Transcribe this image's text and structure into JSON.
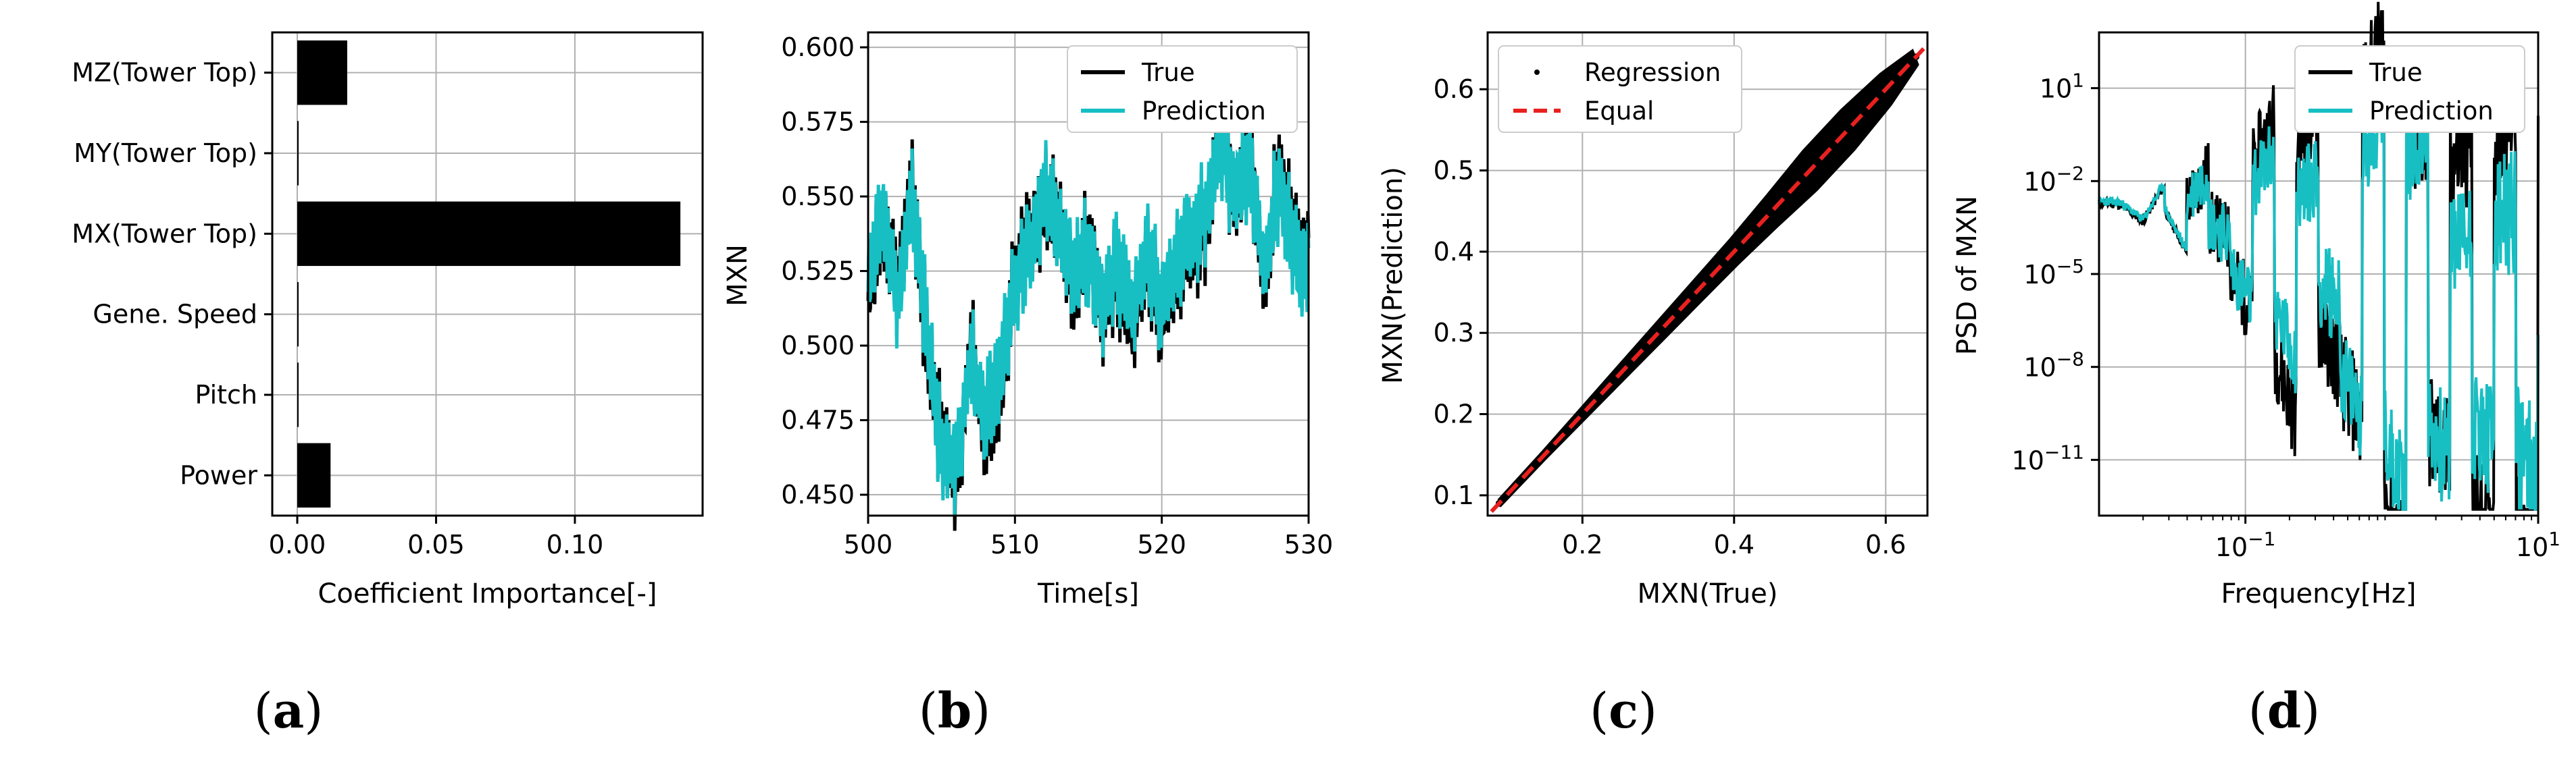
{
  "colors": {
    "true": "#000000",
    "prediction": "#17bfc3",
    "equal": "#e8211f",
    "grid": "#b0b0b0"
  },
  "chart_data": [
    {
      "id": "a",
      "type": "bar",
      "orientation": "horizontal",
      "categories": [
        "MZ(Tower Top)",
        "MY(Tower Top)",
        "MX(Tower Top)",
        "Gene. Speed",
        "Pitch",
        "Power"
      ],
      "values": [
        0.018,
        0.0005,
        0.138,
        0.0004,
        0.0003,
        0.012
      ],
      "xlabel": "Coefficient Importance[-]",
      "ylabel": "",
      "xlim": [
        -0.009,
        0.146
      ],
      "xticks": [
        "0.00",
        "0.05",
        "0.10"
      ],
      "xtick_values": [
        0.0,
        0.05,
        0.1
      ],
      "grid": true,
      "panel_label": {
        "open": "(",
        "letter": "a",
        "close": ")"
      }
    },
    {
      "id": "b",
      "type": "line",
      "xlabel": "Time[s]",
      "ylabel": "MXN",
      "xlim": [
        500,
        530
      ],
      "ylim": [
        0.443,
        0.605
      ],
      "xticks": [
        "500",
        "510",
        "520",
        "530"
      ],
      "xtick_values": [
        500,
        510,
        520,
        530
      ],
      "yticks": [
        "0.450",
        "0.475",
        "0.500",
        "0.525",
        "0.550",
        "0.575",
        "0.600"
      ],
      "ytick_values": [
        0.45,
        0.475,
        0.5,
        0.525,
        0.55,
        0.575,
        0.6
      ],
      "legend": {
        "placement": "top-right",
        "entries": [
          "True",
          "Prediction"
        ]
      },
      "grid": true,
      "series": [
        {
          "name": "True",
          "x": [
            500,
            501,
            502,
            503,
            504,
            505,
            506,
            507,
            508,
            509,
            510,
            511,
            512,
            513,
            514,
            515,
            516,
            517,
            518,
            519,
            520,
            521,
            522,
            523,
            524,
            525,
            526,
            527,
            528,
            529,
            530
          ],
          "y": [
            0.515,
            0.545,
            0.52,
            0.552,
            0.5,
            0.47,
            0.455,
            0.498,
            0.47,
            0.485,
            0.525,
            0.535,
            0.55,
            0.54,
            0.52,
            0.535,
            0.51,
            0.525,
            0.505,
            0.53,
            0.51,
            0.525,
            0.535,
            0.54,
            0.575,
            0.548,
            0.565,
            0.52,
            0.56,
            0.535,
            0.53
          ]
        },
        {
          "name": "Prediction",
          "x": [
            500,
            501,
            502,
            503,
            504,
            505,
            506,
            507,
            508,
            509,
            510,
            511,
            512,
            513,
            514,
            515,
            516,
            517,
            518,
            519,
            520,
            521,
            522,
            523,
            524,
            525,
            526,
            527,
            528,
            529,
            530
          ],
          "y": [
            0.518,
            0.548,
            0.515,
            0.55,
            0.505,
            0.465,
            0.46,
            0.495,
            0.475,
            0.49,
            0.522,
            0.532,
            0.553,
            0.538,
            0.525,
            0.532,
            0.512,
            0.528,
            0.51,
            0.532,
            0.513,
            0.528,
            0.538,
            0.545,
            0.57,
            0.55,
            0.562,
            0.525,
            0.556,
            0.532,
            0.527
          ]
        }
      ],
      "panel_label": {
        "open": "(",
        "letter": "b",
        "close": ")"
      }
    },
    {
      "id": "c",
      "type": "scatter",
      "xlabel": "MXN(True)",
      "ylabel": "MXN(Prediction)",
      "xlim": [
        0.075,
        0.655
      ],
      "ylim": [
        0.075,
        0.67
      ],
      "xticks": [
        "0.2",
        "0.4",
        "0.6"
      ],
      "xtick_values": [
        0.2,
        0.4,
        0.6
      ],
      "yticks": [
        "0.1",
        "0.2",
        "0.3",
        "0.4",
        "0.5",
        "0.6"
      ],
      "ytick_values": [
        0.1,
        0.2,
        0.3,
        0.4,
        0.5,
        0.6
      ],
      "legend": {
        "placement": "top-left",
        "entries": [
          "Regression",
          "Equal"
        ]
      },
      "grid": true,
      "series": [
        {
          "name": "Regression",
          "x": [
            0.09,
            0.15,
            0.2,
            0.25,
            0.3,
            0.35,
            0.4,
            0.45,
            0.5,
            0.55,
            0.6,
            0.64
          ],
          "y": [
            0.09,
            0.15,
            0.2,
            0.25,
            0.3,
            0.35,
            0.4,
            0.45,
            0.5,
            0.55,
            0.6,
            0.64
          ],
          "band": [
            0.005,
            0.006,
            0.008,
            0.01,
            0.012,
            0.014,
            0.016,
            0.02,
            0.025,
            0.025,
            0.02,
            0.01
          ]
        },
        {
          "name": "Equal",
          "x": [
            0.08,
            0.65
          ],
          "y": [
            0.08,
            0.65
          ]
        }
      ],
      "panel_label": {
        "open": "(",
        "letter": "c",
        "close": ")"
      }
    },
    {
      "id": "d",
      "type": "line",
      "scale": "loglog",
      "xlabel": "Frequency[Hz]",
      "ylabel": "PSD of MXN",
      "xlim_log10": [
        -2,
        1
      ],
      "ylim_log10": [
        -12.8,
        2.8
      ],
      "xticks": [
        {
          "base": "10",
          "exp": "−1"
        },
        {
          "base": "10",
          "exp": "1"
        }
      ],
      "xtick_log10": [
        -1,
        1
      ],
      "yticks": [
        {
          "base": "10",
          "exp": "1"
        },
        {
          "base": "10",
          "exp": "−2"
        },
        {
          "base": "10",
          "exp": "−5"
        },
        {
          "base": "10",
          "exp": "−8"
        },
        {
          "base": "10",
          "exp": "−11"
        }
      ],
      "ytick_log10": [
        1,
        -2,
        -5,
        -8,
        -11
      ],
      "legend": {
        "placement": "top-right",
        "entries": [
          "True",
          "Prediction"
        ]
      },
      "grid": true,
      "series": [
        {
          "name": "True",
          "x_log10": [
            -2.0,
            -1.85,
            -1.7,
            -1.6,
            -1.5,
            -1.4,
            -1.3,
            -1.2,
            -1.1,
            -1.0,
            -0.9,
            -0.8,
            -0.7,
            -0.6,
            -0.5,
            -0.4,
            -0.3,
            -0.2,
            -0.1,
            0.0,
            0.1,
            0.2,
            0.3,
            0.4,
            0.5,
            0.6,
            0.7,
            0.8,
            0.9,
            1.0
          ],
          "y_log10": [
            -2.7,
            -2.75,
            -3.3,
            -2.5,
            -3.4,
            -2.7,
            -3.1,
            -4.0,
            -3.0,
            -4.5,
            -3.5,
            -4.3,
            -5.2,
            -4.0,
            -5.5,
            -4.8,
            -5.6,
            -5.0,
            -6.0,
            -5.3,
            -6.3,
            -5.8,
            -6.6,
            -6.1,
            -8.0,
            -7.6,
            -9.5,
            -8.5,
            -10.8,
            -9.8
          ]
        },
        {
          "name": "Prediction",
          "x_log10": [
            -2.0,
            -1.85,
            -1.7,
            -1.6,
            -1.5,
            -1.4,
            -1.3,
            -1.2,
            -1.1,
            -1.0,
            -0.9,
            -0.8,
            -0.7,
            -0.6,
            -0.5,
            -0.4,
            -0.3,
            -0.2,
            -0.1,
            0.0,
            0.1,
            0.2,
            0.3,
            0.4,
            0.5,
            0.6,
            0.7,
            0.8,
            0.9,
            1.0
          ],
          "y_log10": [
            -2.65,
            -2.7,
            -3.25,
            -2.45,
            -3.35,
            -2.65,
            -3.05,
            -3.9,
            -3.2,
            -4.2,
            -3.7,
            -4.1,
            -5.0,
            -4.2,
            -5.3,
            -4.6,
            -5.4,
            -5.2,
            -5.8,
            -5.5,
            -6.1,
            -6.0,
            -6.4,
            -6.3,
            -7.6,
            -7.8,
            -8.9,
            -8.2,
            -9.6,
            -8.6
          ]
        }
      ],
      "panel_label": {
        "open": "(",
        "letter": "d",
        "close": ")"
      }
    }
  ]
}
